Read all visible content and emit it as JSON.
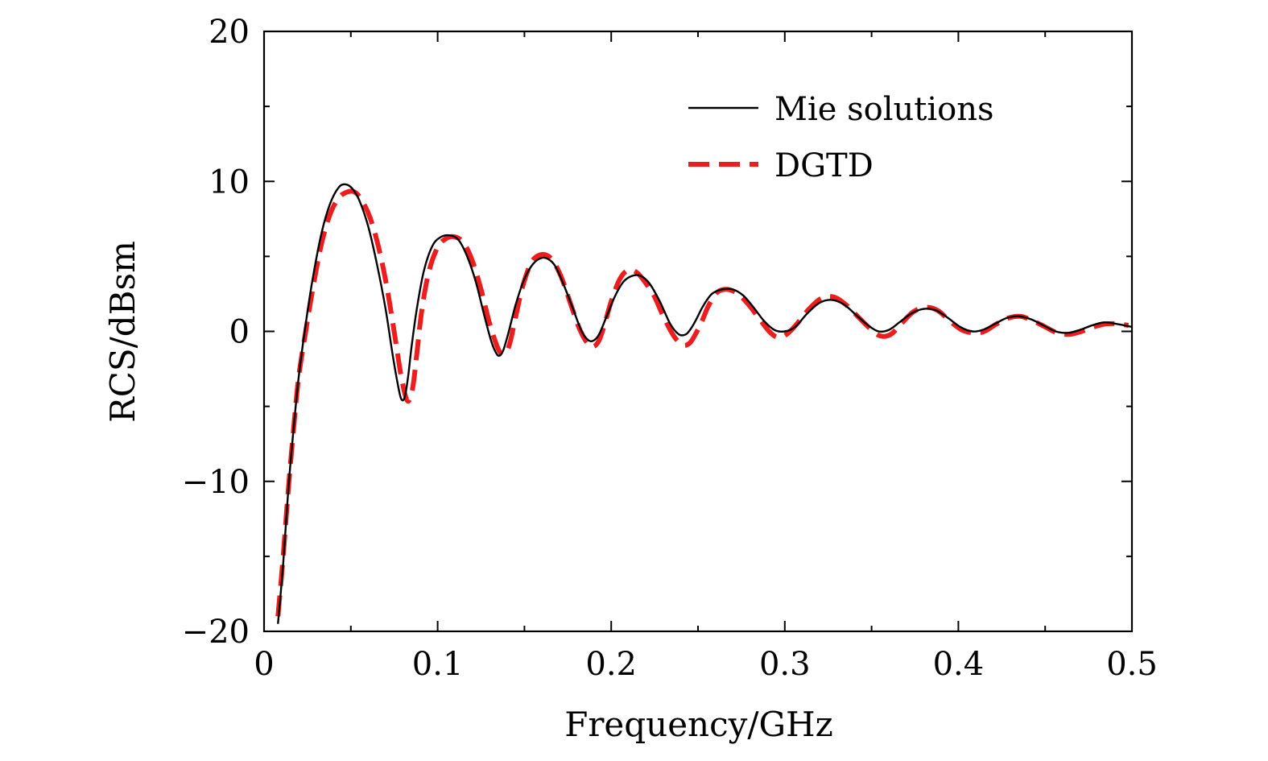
{
  "chart_data": {
    "type": "line",
    "title": "",
    "xlabel": "Frequency/GHz",
    "ylabel": "RCS/dBsm",
    "xlim": [
      0,
      0.5
    ],
    "ylim": [
      -20,
      20
    ],
    "xticks": [
      0,
      0.1,
      0.2,
      0.3,
      0.4,
      0.5
    ],
    "xtick_labels": [
      "0",
      "0.1",
      "0.2",
      "0.3",
      "0.4",
      "0.5"
    ],
    "yticks": [
      -20,
      -10,
      0,
      10,
      20
    ],
    "ytick_labels": [
      "−20",
      "−10",
      "0",
      "10",
      "20"
    ],
    "grid": false,
    "legend_position": "top-right",
    "series": [
      {
        "name": "Mie solutions",
        "color": "#000000",
        "style": "solid",
        "x": [
          0.008,
          0.011,
          0.014,
          0.017,
          0.02,
          0.024,
          0.028,
          0.033,
          0.038,
          0.043,
          0.047,
          0.051,
          0.055,
          0.06,
          0.065,
          0.07,
          0.074,
          0.077,
          0.079,
          0.081,
          0.083,
          0.085,
          0.088,
          0.092,
          0.097,
          0.102,
          0.107,
          0.112,
          0.117,
          0.122,
          0.127,
          0.131,
          0.134,
          0.136,
          0.138,
          0.141,
          0.145,
          0.15,
          0.155,
          0.16,
          0.164,
          0.168,
          0.173,
          0.178,
          0.183,
          0.187,
          0.19,
          0.193,
          0.197,
          0.202,
          0.207,
          0.212,
          0.217,
          0.222,
          0.228,
          0.234,
          0.239,
          0.243,
          0.246,
          0.249,
          0.253,
          0.258,
          0.264,
          0.27,
          0.276,
          0.282,
          0.288,
          0.294,
          0.3,
          0.306,
          0.313,
          0.32,
          0.327,
          0.334,
          0.341,
          0.348,
          0.354,
          0.36,
          0.366,
          0.373,
          0.38,
          0.387,
          0.394,
          0.401,
          0.408,
          0.414,
          0.421,
          0.428,
          0.435,
          0.442,
          0.449,
          0.456,
          0.463,
          0.47,
          0.477,
          0.484,
          0.491,
          0.5
        ],
        "values": [
          -19.5,
          -15.5,
          -10.5,
          -6.5,
          -3.0,
          0.5,
          3.5,
          6.5,
          8.5,
          9.6,
          9.8,
          9.5,
          8.7,
          7.0,
          4.5,
          1.5,
          -1.5,
          -3.5,
          -4.5,
          -4.4,
          -3.0,
          -1.0,
          1.5,
          4.0,
          5.7,
          6.3,
          6.4,
          6.1,
          5.0,
          3.3,
          1.0,
          -0.7,
          -1.5,
          -1.6,
          -1.2,
          0.0,
          1.8,
          3.5,
          4.5,
          4.9,
          4.8,
          4.3,
          3.0,
          1.5,
          0.0,
          -0.6,
          -0.6,
          -0.2,
          0.9,
          2.3,
          3.3,
          3.7,
          3.7,
          3.2,
          2.0,
          0.5,
          -0.2,
          -0.2,
          0.2,
          0.8,
          1.7,
          2.5,
          2.8,
          2.8,
          2.4,
          1.6,
          0.7,
          0.1,
          0.0,
          0.3,
          1.2,
          1.9,
          2.1,
          1.8,
          1.1,
          0.4,
          0.0,
          0.1,
          0.6,
          1.2,
          1.5,
          1.4,
          0.9,
          0.3,
          0.0,
          0.1,
          0.5,
          0.9,
          1.0,
          0.8,
          0.4,
          0.0,
          -0.1,
          0.1,
          0.4,
          0.6,
          0.5,
          0.3
        ]
      },
      {
        "name": "DGTD",
        "color": "#ee1c1c",
        "style": "dashed",
        "x": [
          0.008,
          0.011,
          0.014,
          0.017,
          0.02,
          0.024,
          0.028,
          0.033,
          0.038,
          0.043,
          0.048,
          0.052,
          0.056,
          0.061,
          0.066,
          0.071,
          0.076,
          0.079,
          0.082,
          0.084,
          0.086,
          0.088,
          0.091,
          0.095,
          0.1,
          0.105,
          0.11,
          0.115,
          0.12,
          0.125,
          0.13,
          0.135,
          0.138,
          0.14,
          0.142,
          0.145,
          0.149,
          0.154,
          0.159,
          0.164,
          0.168,
          0.172,
          0.177,
          0.182,
          0.187,
          0.19,
          0.193,
          0.196,
          0.2,
          0.205,
          0.21,
          0.215,
          0.22,
          0.225,
          0.23,
          0.236,
          0.241,
          0.245,
          0.248,
          0.252,
          0.256,
          0.261,
          0.267,
          0.273,
          0.279,
          0.285,
          0.291,
          0.296,
          0.301,
          0.307,
          0.314,
          0.321,
          0.328,
          0.335,
          0.342,
          0.349,
          0.355,
          0.361,
          0.367,
          0.374,
          0.381,
          0.388,
          0.395,
          0.402,
          0.409,
          0.415,
          0.422,
          0.429,
          0.436,
          0.443,
          0.45,
          0.457,
          0.464,
          0.471,
          0.478,
          0.485,
          0.492,
          0.498
        ],
        "values": [
          -19.0,
          -15.0,
          -10.5,
          -6.5,
          -3.0,
          0.0,
          2.8,
          5.8,
          7.8,
          8.9,
          9.3,
          9.3,
          8.8,
          7.6,
          5.6,
          2.8,
          -0.8,
          -3.0,
          -4.5,
          -4.5,
          -3.5,
          -1.5,
          1.5,
          4.0,
          5.6,
          6.2,
          6.3,
          5.9,
          4.7,
          2.8,
          0.5,
          -1.2,
          -1.5,
          -1.3,
          -0.6,
          1.0,
          3.0,
          4.6,
          5.1,
          5.0,
          4.4,
          3.4,
          1.7,
          0.1,
          -0.9,
          -1.0,
          -0.6,
          0.4,
          2.0,
          3.5,
          4.1,
          3.9,
          3.2,
          2.3,
          1.0,
          -0.3,
          -0.9,
          -0.8,
          -0.3,
          0.6,
          1.7,
          2.6,
          2.8,
          2.5,
          1.8,
          0.9,
          0.0,
          -0.4,
          -0.2,
          0.5,
          1.5,
          2.2,
          2.3,
          1.8,
          1.0,
          0.2,
          -0.3,
          -0.2,
          0.5,
          1.3,
          1.6,
          1.4,
          0.7,
          0.1,
          -0.1,
          0.0,
          0.5,
          0.9,
          1.0,
          0.7,
          0.3,
          -0.1,
          -0.2,
          0.0,
          0.3,
          0.5,
          0.5,
          0.4
        ]
      }
    ]
  }
}
